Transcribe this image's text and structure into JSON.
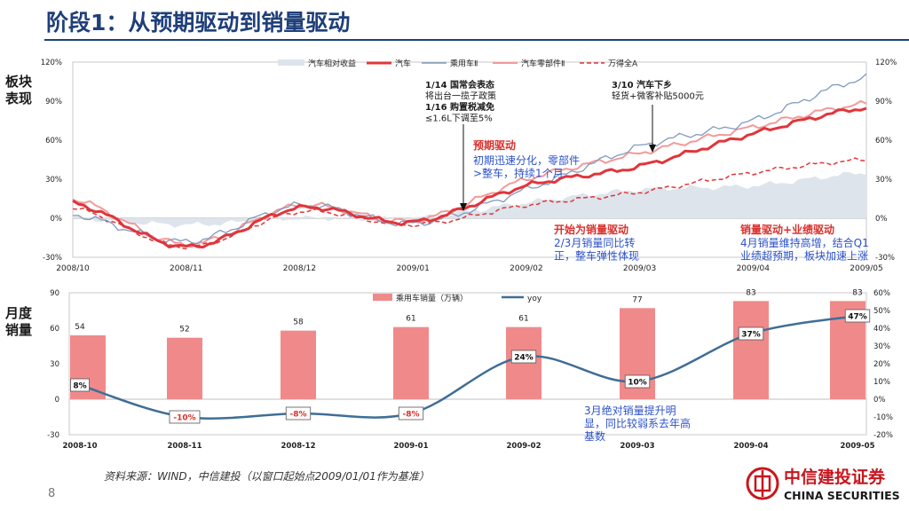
{
  "title": "阶段1：从预期驱动到销量驱动",
  "row_labels": {
    "top": [
      "板块",
      "表现"
    ],
    "bottom": [
      "月度",
      "销量"
    ]
  },
  "colors": {
    "title": "#1f3f7a",
    "auto": "#e0353b",
    "passenger_index": "#7f9bbd",
    "parts": "#f29a9a",
    "market": "#e0353b",
    "excess_area": "#dde4ec",
    "bars": "#f08a8a",
    "yoy_line": "#3f6e96",
    "annotation_blue": "#2c52c9",
    "annotation_red": "#d9302c",
    "logo_red": "#c8161d"
  },
  "chart_data": [
    {
      "type": "line",
      "title": "板块表现",
      "x": [
        "2008/10",
        "2008/11",
        "2008/12",
        "2009/01",
        "2009/02",
        "2009/03",
        "2009/04",
        "2009/05"
      ],
      "ylim": [
        -30,
        120
      ],
      "yticks": [
        "-30%",
        "0%",
        "30%",
        "60%",
        "90%",
        "120%"
      ],
      "series": [
        {
          "name": "汽车相对收益",
          "kind": "area",
          "values": [
            0,
            -5,
            0,
            0,
            12,
            22,
            25,
            35
          ]
        },
        {
          "name": "汽车",
          "values": [
            12,
            -22,
            8,
            -3,
            25,
            40,
            65,
            85
          ]
        },
        {
          "name": "乘用车Ⅱ",
          "values": [
            3,
            -18,
            10,
            -4,
            22,
            55,
            75,
            108
          ]
        },
        {
          "name": "汽车零部件Ⅱ",
          "values": [
            15,
            -20,
            10,
            -2,
            30,
            50,
            70,
            88
          ]
        },
        {
          "name": "万得全A",
          "dashed": true,
          "values": [
            8,
            -22,
            5,
            -5,
            10,
            20,
            35,
            45
          ]
        }
      ],
      "annotations": [
        {
          "lines": [
            "1/14 国常会表态",
            "将出台一揽子政策",
            "1/16 购置税减免",
            "≤1.6L下调至5%"
          ],
          "bold": [
            0,
            2
          ]
        },
        {
          "lines": [
            "3/10 汽车下乡",
            "轻货+微客补贴5000元"
          ],
          "bold": [
            0
          ]
        },
        {
          "heading": "预期驱动",
          "lines": [
            "初期迅速分化，零部件",
            ">整车，持续1个月"
          ]
        },
        {
          "heading": "开始为销量驱动",
          "lines": [
            "2/3月销量同比转",
            "正，整车弹性体现"
          ]
        },
        {
          "heading": "销量驱动+业绩驱动",
          "lines": [
            "4月销量维持高增，结合Q1",
            "业绩超预期，板块加速上涨"
          ]
        }
      ]
    },
    {
      "type": "bar",
      "title": "月度销量",
      "categories": [
        "2008-10",
        "2008-11",
        "2008-12",
        "2009-01",
        "2009-02",
        "2009-03",
        "2009-04",
        "2009-05"
      ],
      "series": [
        {
          "name": "乘用车销量（万辆）",
          "values": [
            54,
            52,
            58,
            61,
            61,
            77,
            83,
            83
          ]
        },
        {
          "name": "yoy",
          "kind": "line",
          "values": [
            8,
            -10,
            -8,
            -8,
            24,
            10,
            37,
            47
          ],
          "labels": [
            "8%",
            "-10%",
            "-8%",
            "-8%",
            "24%",
            "10%",
            "37%",
            "47%"
          ]
        }
      ],
      "ylim_left": [
        -30,
        90
      ],
      "yticks_left": [
        "-30",
        "0",
        "30",
        "60",
        "90"
      ],
      "ylim_right": [
        -20,
        60
      ],
      "yticks_right": [
        "-20%",
        "-10%",
        "0%",
        "10%",
        "20%",
        "30%",
        "40%",
        "50%",
        "60%"
      ],
      "annotation": [
        "3月绝对销量提升明",
        "显，同比较弱系去年高",
        "基数"
      ]
    }
  ],
  "footer": {
    "source": "资料来源：WIND，中信建投（以窗口起始点2009/01/01作为基准）",
    "page": "8",
    "logo_cn": "中信建投证券",
    "logo_en": "CHINA SECURITIES"
  }
}
